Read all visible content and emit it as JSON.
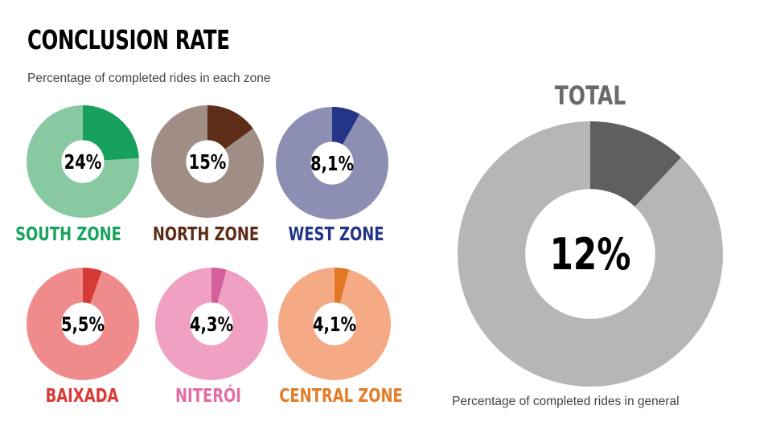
{
  "title": "CONCLUSION RATE",
  "subtitle": "Percentage of completed rides in each zone",
  "total": {
    "title": "TOTAL",
    "caption": "Percentage of completed rides in general"
  },
  "chart_data": [
    {
      "type": "pie",
      "label": "SOUTH ZONE",
      "value": 24,
      "display": "24%",
      "base_color": "#88c9a1",
      "highlight_color": "#16a05c",
      "label_color": "#19a35e"
    },
    {
      "type": "pie",
      "label": "NORTH ZONE",
      "value": 15,
      "display": "15%",
      "base_color": "#a08e86",
      "highlight_color": "#5e2d18",
      "label_color": "#5e2d18"
    },
    {
      "type": "pie",
      "label": "WEST ZONE",
      "value": 8.1,
      "display": "8,1%",
      "base_color": "#8c8fb3",
      "highlight_color": "#243486",
      "label_color": "#243486"
    },
    {
      "type": "pie",
      "label": "BAIXADA",
      "value": 5.5,
      "display": "5,5%",
      "base_color": "#f08b8b",
      "highlight_color": "#d63a37",
      "label_color": "#dc3a37"
    },
    {
      "type": "pie",
      "label": "NITERÓI",
      "value": 4.3,
      "display": "4,3%",
      "base_color": "#f0a0c2",
      "highlight_color": "#d35f9b",
      "label_color": "#e36da3"
    },
    {
      "type": "pie",
      "label": "CENTRAL ZONE",
      "value": 4.1,
      "display": "4,1%",
      "base_color": "#f4aa84",
      "highlight_color": "#e27723",
      "label_color": "#e47d2a"
    },
    {
      "type": "pie",
      "label": "TOTAL",
      "value": 12,
      "display": "12%",
      "base_color": "#b6b6b6",
      "highlight_color": "#5f5f5f",
      "label_color": "#6a6a6a"
    }
  ]
}
